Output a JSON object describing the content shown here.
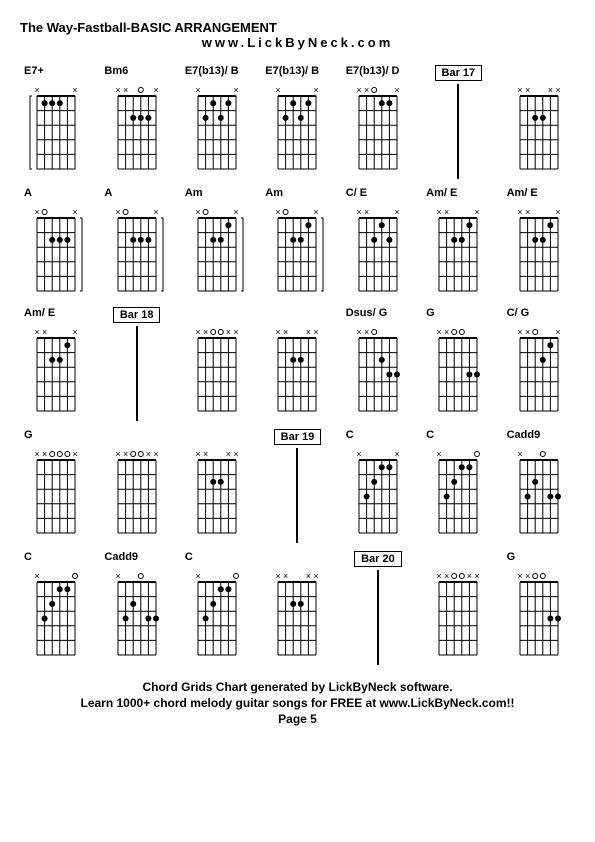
{
  "title": "The Way-Fastball-BASIC ARRANGEMENT",
  "subtitle": "www.LickByNeck.com",
  "footer": {
    "line1": "Chord Grids Chart generated by LickByNeck software.",
    "line2": "Learn 1000+ chord melody guitar songs for FREE at www.LickByNeck.com!!",
    "page": "Page 5"
  },
  "diagram_style": {
    "frets": 5,
    "strings": 6,
    "grid_color": "#000000",
    "dot_color": "#000000",
    "open_color": "#000000",
    "x_color": "#000000",
    "bg_color": "#ffffff",
    "line_width": 1,
    "dot_radius": 3,
    "open_radius": 2.5
  },
  "cells": [
    {
      "type": "chord",
      "label": "E7+",
      "mutes": [
        1,
        0,
        0,
        0,
        0,
        1
      ],
      "opens": [
        0,
        0,
        0,
        0,
        0,
        0
      ],
      "dots": [
        [
          2,
          1
        ],
        [
          3,
          1
        ],
        [
          4,
          1
        ]
      ],
      "leftBracket": true
    },
    {
      "type": "chord",
      "label": "Bm6",
      "mutes": [
        1,
        1,
        0,
        0,
        0,
        1
      ],
      "opens": [
        0,
        0,
        0,
        1,
        0,
        0
      ],
      "dots": [
        [
          3,
          2
        ],
        [
          4,
          2
        ],
        [
          5,
          2
        ]
      ]
    },
    {
      "type": "chord",
      "label": "E7(b13)/ B",
      "mutes": [
        1,
        0,
        0,
        0,
        0,
        1
      ],
      "opens": [
        0,
        0,
        0,
        0,
        0,
        0
      ],
      "dots": [
        [
          2,
          2
        ],
        [
          3,
          1
        ],
        [
          4,
          2
        ],
        [
          5,
          1
        ]
      ]
    },
    {
      "type": "chord",
      "label": "E7(b13)/ B",
      "mutes": [
        1,
        0,
        0,
        0,
        0,
        1
      ],
      "opens": [
        0,
        0,
        0,
        0,
        0,
        0
      ],
      "dots": [
        [
          2,
          2
        ],
        [
          3,
          1
        ],
        [
          4,
          2
        ],
        [
          5,
          1
        ]
      ]
    },
    {
      "type": "chord",
      "label": "E7(b13)/ D",
      "mutes": [
        1,
        1,
        0,
        0,
        0,
        1
      ],
      "opens": [
        0,
        0,
        1,
        0,
        0,
        0
      ],
      "dots": [
        [
          4,
          1
        ],
        [
          5,
          1
        ]
      ]
    },
    {
      "type": "bar",
      "label": "Bar 17"
    },
    {
      "type": "chord",
      "label": "",
      "mutes": [
        1,
        1,
        0,
        0,
        1,
        1
      ],
      "opens": [
        0,
        0,
        0,
        0,
        0,
        0
      ],
      "dots": [
        [
          3,
          2
        ],
        [
          4,
          2
        ]
      ]
    },
    {
      "type": "chord",
      "label": "A",
      "mutes": [
        1,
        0,
        0,
        0,
        0,
        1
      ],
      "opens": [
        0,
        1,
        0,
        0,
        0,
        0
      ],
      "dots": [
        [
          3,
          2
        ],
        [
          4,
          2
        ],
        [
          5,
          2
        ]
      ],
      "rightBracket": true
    },
    {
      "type": "chord",
      "label": "A",
      "mutes": [
        1,
        0,
        0,
        0,
        0,
        1
      ],
      "opens": [
        0,
        1,
        0,
        0,
        0,
        0
      ],
      "dots": [
        [
          3,
          2
        ],
        [
          4,
          2
        ],
        [
          5,
          2
        ]
      ],
      "rightBracket": true
    },
    {
      "type": "chord",
      "label": "Am",
      "mutes": [
        1,
        0,
        0,
        0,
        0,
        1
      ],
      "opens": [
        0,
        1,
        0,
        0,
        0,
        0
      ],
      "dots": [
        [
          3,
          2
        ],
        [
          4,
          2
        ],
        [
          5,
          1
        ]
      ],
      "rightBracket": true
    },
    {
      "type": "chord",
      "label": "Am",
      "mutes": [
        1,
        0,
        0,
        0,
        0,
        1
      ],
      "opens": [
        0,
        1,
        0,
        0,
        0,
        0
      ],
      "dots": [
        [
          3,
          2
        ],
        [
          4,
          2
        ],
        [
          5,
          1
        ]
      ],
      "rightBracket": true
    },
    {
      "type": "chord",
      "label": "C/ E",
      "mutes": [
        1,
        1,
        0,
        0,
        0,
        1
      ],
      "opens": [
        0,
        0,
        0,
        0,
        0,
        0
      ],
      "dots": [
        [
          3,
          2
        ],
        [
          4,
          1
        ],
        [
          5,
          2
        ]
      ]
    },
    {
      "type": "chord",
      "label": "Am/ E",
      "mutes": [
        1,
        1,
        0,
        0,
        0,
        1
      ],
      "opens": [
        0,
        0,
        0,
        0,
        0,
        0
      ],
      "dots": [
        [
          3,
          2
        ],
        [
          4,
          2
        ],
        [
          5,
          1
        ]
      ]
    },
    {
      "type": "chord",
      "label": "Am/ E",
      "mutes": [
        1,
        1,
        0,
        0,
        0,
        1
      ],
      "opens": [
        0,
        0,
        0,
        0,
        0,
        0
      ],
      "dots": [
        [
          3,
          2
        ],
        [
          4,
          2
        ],
        [
          5,
          1
        ]
      ]
    },
    {
      "type": "chord",
      "label": "Am/ E",
      "mutes": [
        1,
        1,
        0,
        0,
        0,
        1
      ],
      "opens": [
        0,
        0,
        0,
        0,
        0,
        0
      ],
      "dots": [
        [
          3,
          2
        ],
        [
          4,
          2
        ],
        [
          5,
          1
        ]
      ]
    },
    {
      "type": "bar",
      "label": "Bar 18"
    },
    {
      "type": "chord",
      "label": "",
      "mutes": [
        1,
        1,
        0,
        0,
        1,
        1
      ],
      "opens": [
        0,
        0,
        1,
        1,
        0,
        0
      ],
      "dots": []
    },
    {
      "type": "chord",
      "label": "",
      "mutes": [
        1,
        1,
        0,
        0,
        1,
        1
      ],
      "opens": [
        0,
        0,
        0,
        0,
        0,
        0
      ],
      "dots": [
        [
          3,
          2
        ],
        [
          4,
          2
        ]
      ]
    },
    {
      "type": "chord",
      "label": "Dsus/ G",
      "mutes": [
        1,
        1,
        0,
        0,
        0,
        0
      ],
      "opens": [
        0,
        0,
        1,
        0,
        0,
        0
      ],
      "dots": [
        [
          4,
          2
        ],
        [
          5,
          3
        ],
        [
          6,
          3
        ]
      ]
    },
    {
      "type": "chord",
      "label": "G",
      "mutes": [
        1,
        1,
        0,
        0,
        0,
        0
      ],
      "opens": [
        0,
        0,
        1,
        1,
        0,
        0
      ],
      "dots": [
        [
          5,
          3
        ],
        [
          6,
          3
        ]
      ]
    },
    {
      "type": "chord",
      "label": "C/ G",
      "mutes": [
        1,
        1,
        0,
        0,
        0,
        1
      ],
      "opens": [
        0,
        0,
        1,
        0,
        0,
        0
      ],
      "dots": [
        [
          4,
          2
        ],
        [
          5,
          1
        ]
      ]
    },
    {
      "type": "chord",
      "label": "G",
      "mutes": [
        1,
        1,
        0,
        0,
        0,
        1
      ],
      "opens": [
        0,
        0,
        1,
        1,
        1,
        0
      ],
      "dots": []
    },
    {
      "type": "chord",
      "label": "",
      "mutes": [
        1,
        1,
        0,
        0,
        1,
        1
      ],
      "opens": [
        0,
        0,
        1,
        1,
        0,
        0
      ],
      "dots": []
    },
    {
      "type": "chord",
      "label": "",
      "mutes": [
        1,
        1,
        0,
        0,
        1,
        1
      ],
      "opens": [
        0,
        0,
        0,
        0,
        0,
        0
      ],
      "dots": [
        [
          3,
          2
        ],
        [
          4,
          2
        ]
      ]
    },
    {
      "type": "bar",
      "label": "Bar 19"
    },
    {
      "type": "chord",
      "label": "C",
      "mutes": [
        1,
        0,
        0,
        0,
        0,
        1
      ],
      "opens": [
        0,
        0,
        0,
        0,
        0,
        0
      ],
      "dots": [
        [
          2,
          3
        ],
        [
          3,
          2
        ],
        [
          4,
          1
        ],
        [
          5,
          1
        ]
      ]
    },
    {
      "type": "chord",
      "label": "C",
      "mutes": [
        1,
        0,
        0,
        0,
        0,
        0
      ],
      "opens": [
        0,
        0,
        0,
        0,
        0,
        1
      ],
      "dots": [
        [
          2,
          3
        ],
        [
          3,
          2
        ],
        [
          4,
          1
        ],
        [
          5,
          1
        ]
      ]
    },
    {
      "type": "chord",
      "label": "Cadd9",
      "mutes": [
        1,
        0,
        0,
        0,
        0,
        0
      ],
      "opens": [
        0,
        0,
        0,
        1,
        0,
        0
      ],
      "dots": [
        [
          2,
          3
        ],
        [
          3,
          2
        ],
        [
          5,
          3
        ],
        [
          6,
          3
        ]
      ]
    },
    {
      "type": "chord",
      "label": "C",
      "mutes": [
        1,
        0,
        0,
        0,
        0,
        0
      ],
      "opens": [
        0,
        0,
        0,
        0,
        0,
        1
      ],
      "dots": [
        [
          2,
          3
        ],
        [
          3,
          2
        ],
        [
          4,
          1
        ],
        [
          5,
          1
        ]
      ]
    },
    {
      "type": "chord",
      "label": "Cadd9",
      "mutes": [
        1,
        0,
        0,
        0,
        0,
        0
      ],
      "opens": [
        0,
        0,
        0,
        1,
        0,
        0
      ],
      "dots": [
        [
          2,
          3
        ],
        [
          3,
          2
        ],
        [
          5,
          3
        ],
        [
          6,
          3
        ]
      ]
    },
    {
      "type": "chord",
      "label": "C",
      "mutes": [
        1,
        0,
        0,
        0,
        0,
        0
      ],
      "opens": [
        0,
        0,
        0,
        0,
        0,
        1
      ],
      "dots": [
        [
          2,
          3
        ],
        [
          3,
          2
        ],
        [
          4,
          1
        ],
        [
          5,
          1
        ]
      ]
    },
    {
      "type": "chord",
      "label": "",
      "mutes": [
        1,
        1,
        0,
        0,
        1,
        1
      ],
      "opens": [
        0,
        0,
        0,
        0,
        0,
        0
      ],
      "dots": [
        [
          3,
          2
        ],
        [
          4,
          2
        ]
      ]
    },
    {
      "type": "bar",
      "label": "Bar 20"
    },
    {
      "type": "chord",
      "label": "",
      "mutes": [
        1,
        1,
        0,
        0,
        1,
        1
      ],
      "opens": [
        0,
        0,
        1,
        1,
        0,
        0
      ],
      "dots": []
    },
    {
      "type": "chord",
      "label": "G",
      "mutes": [
        1,
        1,
        0,
        0,
        0,
        0
      ],
      "opens": [
        0,
        0,
        1,
        1,
        0,
        0
      ],
      "dots": [
        [
          5,
          3
        ],
        [
          6,
          3
        ]
      ]
    }
  ]
}
